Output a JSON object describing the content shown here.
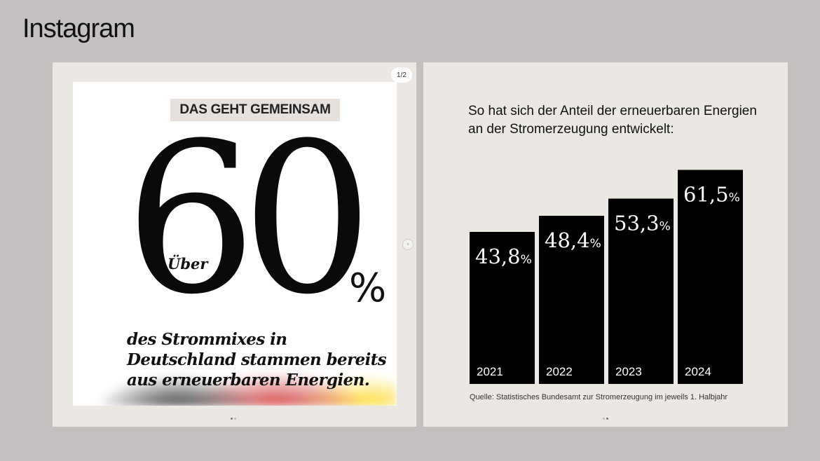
{
  "app": {
    "title": "Instagram"
  },
  "post_left": {
    "counter": "1/2",
    "tag": "DAS GEHT GEMEINSAM",
    "prefix": "Über",
    "big_value": "60",
    "unit": "%",
    "claim": "des Strommixes in Deutschland stammen bereits aus erneuerbaren Energien."
  },
  "post_right": {
    "heading": "So hat sich der Anteil der erneuerbaren Energien an der Stromerzeugung entwickelt:",
    "source": "Quelle: Statistisches Bundesamt zur Stromerzeugung im jeweils 1. Halbjahr"
  },
  "chart_data": {
    "type": "bar",
    "title": "So hat sich der Anteil der erneuerbaren Energien an der Stromerzeugung entwickelt:",
    "categories": [
      "2021",
      "2022",
      "2023",
      "2024"
    ],
    "values": [
      43.8,
      48.4,
      53.3,
      61.5
    ],
    "value_labels": [
      "43,8",
      "48,4",
      "53,3",
      "61,5"
    ],
    "unit": "%",
    "bar_color": "#000000",
    "label_color": "#ffffff"
  }
}
